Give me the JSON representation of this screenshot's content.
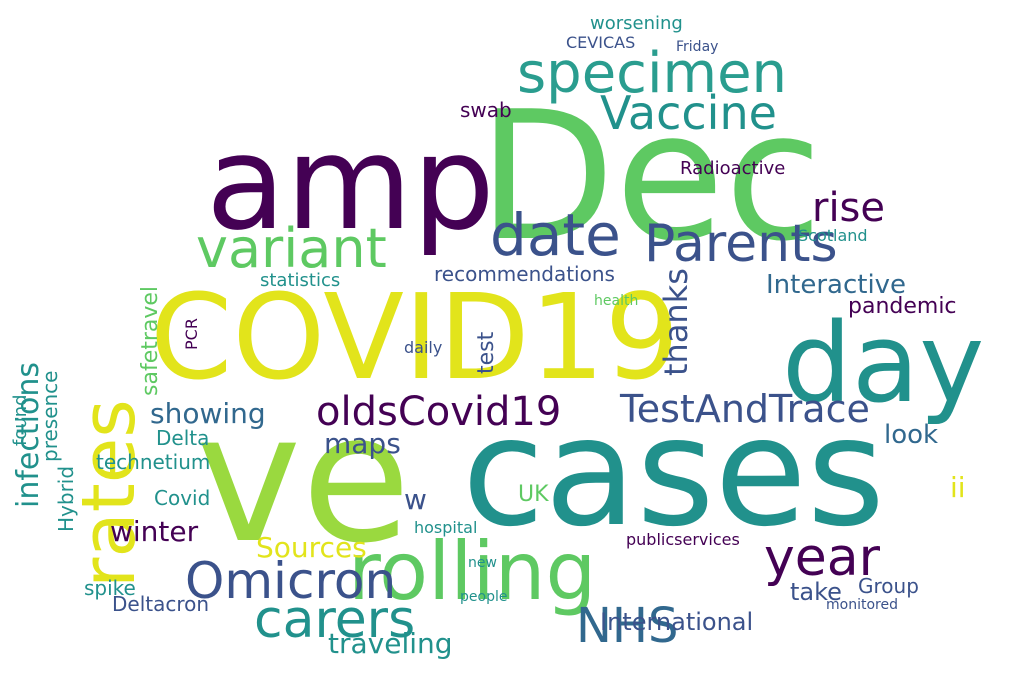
{
  "palette": {
    "yellow": "#e2e41b",
    "green": "#5ec962",
    "teal": "#21918c",
    "blue": "#3b528b",
    "purple": "#440154",
    "lightgreen": "#9ad93f",
    "cyan": "#2a9d8f",
    "indigo": "#31688e"
  },
  "words": [
    {
      "text": "COVID19",
      "color": "yellow"
    },
    {
      "text": "cases",
      "color": "teal"
    },
    {
      "text": "Dec",
      "color": "green"
    },
    {
      "text": "ve",
      "color": "lightgreen"
    },
    {
      "text": "amp",
      "color": "purple"
    },
    {
      "text": "day",
      "color": "teal"
    },
    {
      "text": "rates",
      "color": "yellow"
    },
    {
      "text": "rolling",
      "color": "green"
    },
    {
      "text": "specimen",
      "color": "cyan"
    },
    {
      "text": "Vaccine",
      "color": "teal"
    },
    {
      "text": "Parents",
      "color": "blue"
    },
    {
      "text": "variant",
      "color": "green"
    },
    {
      "text": "date",
      "color": "blue"
    },
    {
      "text": "oldsCovid19",
      "color": "purple"
    },
    {
      "text": "TestAndTrace",
      "color": "blue"
    },
    {
      "text": "year",
      "color": "purple"
    },
    {
      "text": "Omicron",
      "color": "blue"
    },
    {
      "text": "carers",
      "color": "teal"
    },
    {
      "text": "NHS",
      "color": "indigo"
    },
    {
      "text": "Sources",
      "color": "yellow"
    },
    {
      "text": "Interactive",
      "color": "indigo"
    },
    {
      "text": "rise",
      "color": "purple"
    },
    {
      "text": "infections",
      "color": "teal"
    },
    {
      "text": "showing",
      "color": "indigo"
    },
    {
      "text": "maps",
      "color": "blue"
    },
    {
      "text": "thanks",
      "color": "blue"
    },
    {
      "text": "traveling",
      "color": "teal"
    },
    {
      "text": "winter",
      "color": "purple"
    },
    {
      "text": "look",
      "color": "indigo"
    },
    {
      "text": "CEVICAS",
      "color": "blue"
    },
    {
      "text": "worsening",
      "color": "teal"
    },
    {
      "text": "Friday",
      "color": "blue"
    },
    {
      "text": "swab",
      "color": "purple"
    },
    {
      "text": "Radioactive",
      "color": "purple"
    },
    {
      "text": "pandemic",
      "color": "purple"
    },
    {
      "text": "technetium",
      "color": "teal"
    },
    {
      "text": "recommendations",
      "color": "blue"
    },
    {
      "text": "statistics",
      "color": "teal"
    },
    {
      "text": "safetravel",
      "color": "green"
    },
    {
      "text": "International",
      "color": "blue"
    },
    {
      "text": "monitored",
      "color": "blue"
    },
    {
      "text": "Delta",
      "color": "teal"
    },
    {
      "text": "Deltacron",
      "color": "blue"
    },
    {
      "text": "Group",
      "color": "blue"
    },
    {
      "text": "take",
      "color": "blue"
    },
    {
      "text": "spike",
      "color": "teal"
    },
    {
      "text": "Covid",
      "color": "teal"
    },
    {
      "text": "UK",
      "color": "green"
    },
    {
      "text": "Hybrid",
      "color": "teal"
    },
    {
      "text": "presence",
      "color": "teal"
    },
    {
      "text": "PCR",
      "color": "purple"
    },
    {
      "text": "found",
      "color": "teal"
    },
    {
      "text": "test",
      "color": "blue"
    },
    {
      "text": "Scotland",
      "color": "teal"
    },
    {
      "text": "health",
      "color": "green"
    },
    {
      "text": "hospital",
      "color": "teal"
    },
    {
      "text": "daily",
      "color": "blue"
    },
    {
      "text": "publicservices",
      "color": "purple"
    },
    {
      "text": "ii",
      "color": "yellow"
    },
    {
      "text": "w",
      "color": "blue"
    },
    {
      "text": "people",
      "color": "teal"
    },
    {
      "text": "new",
      "color": "teal"
    }
  ]
}
